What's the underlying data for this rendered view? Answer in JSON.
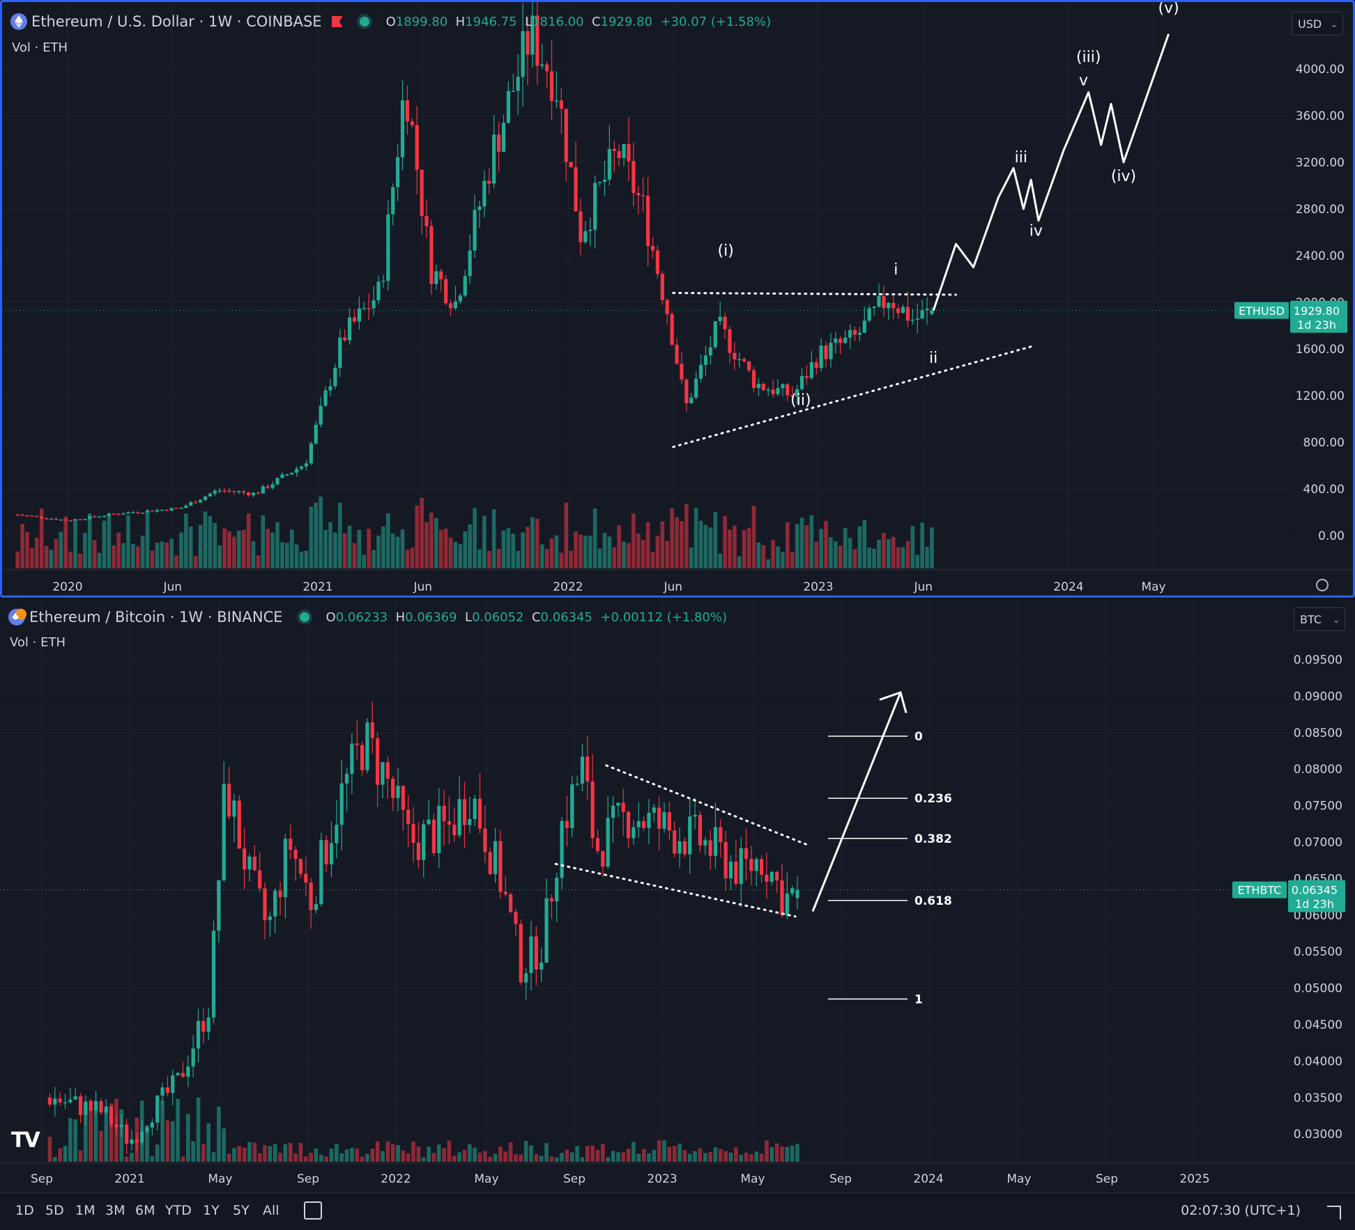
{
  "pane1": {
    "title": "Ethereum / U.S. Dollar · 1W · COINBASE",
    "ohlc": {
      "o": "1899.80",
      "h": "1946.75",
      "l": "1816.00",
      "c": "1929.80",
      "chg": "+30.07 (+1.58%)"
    },
    "vol_label": "Vol · ETH",
    "currency": "USD",
    "price_tag": {
      "symbol": "ETHUSD",
      "price": "1929.80",
      "countdown": "1d 23h"
    },
    "y_ticks": [
      "4000.00",
      "3600.00",
      "3200.00",
      "2800.00",
      "2400.00",
      "2000.00",
      "1600.00",
      "1200.00",
      "800.00",
      "400.00",
      "0.00"
    ],
    "x_ticks": [
      "2020",
      "Jun",
      "2021",
      "Jun",
      "2022",
      "Jun",
      "2023",
      "Jun",
      "2024",
      "May"
    ],
    "wave_labels": [
      "(i)",
      "(ii)",
      "i",
      "ii",
      "iii",
      "iv",
      "v",
      "(iii)",
      "(iv)",
      "(v)"
    ]
  },
  "pane2": {
    "title": "Ethereum / Bitcoin · 1W · BINANCE",
    "ohlc": {
      "o": "0.06233",
      "h": "0.06369",
      "l": "0.06052",
      "c": "0.06345",
      "chg": "+0.00112 (+1.80%)"
    },
    "vol_label": "Vol · ETH",
    "currency": "BTC",
    "price_tag": {
      "symbol": "ETHBTC",
      "price": "0.06345",
      "countdown": "1d 23h"
    },
    "y_ticks": [
      "0.09500",
      "0.09000",
      "0.08500",
      "0.08000",
      "0.07500",
      "0.07000",
      "0.06500",
      "0.06000",
      "0.05500",
      "0.05000",
      "0.04500",
      "0.04000",
      "0.03500",
      "0.03000"
    ],
    "x_ticks": [
      "Sep",
      "2021",
      "May",
      "Sep",
      "2022",
      "May",
      "Sep",
      "2023",
      "May",
      "Sep",
      "2024",
      "May",
      "Sep",
      "2025"
    ],
    "fib_labels": [
      "0",
      "0.236",
      "0.382",
      "0.618",
      "1"
    ]
  },
  "toolbar": {
    "timeframes": [
      "1D",
      "5D",
      "1M",
      "3M",
      "6M",
      "YTD",
      "1Y",
      "5Y",
      "All"
    ],
    "clock": "02:07:30 (UTC+1)"
  },
  "colors": {
    "up": "#22ab94",
    "down": "#f23645",
    "bg": "#151924",
    "grid": "#1e222d",
    "accent": "#2962ff"
  },
  "chart_data": [
    {
      "type": "candlestick",
      "title": "Ethereum / U.S. Dollar · 1W · COINBASE",
      "x_range": [
        "2019-10",
        "2024-07"
      ],
      "ylim": [
        0,
        4400
      ],
      "anchors": [
        [
          2019.8,
          180
        ],
        [
          2020.0,
          130
        ],
        [
          2020.2,
          190
        ],
        [
          2020.45,
          235
        ],
        [
          2020.6,
          390
        ],
        [
          2020.75,
          360
        ],
        [
          2020.95,
          620
        ],
        [
          2021.1,
          1700
        ],
        [
          2021.25,
          2100
        ],
        [
          2021.35,
          3900
        ],
        [
          2021.45,
          2300
        ],
        [
          2021.55,
          2000
        ],
        [
          2021.7,
          3300
        ],
        [
          2021.85,
          4300
        ],
        [
          2021.95,
          3900
        ],
        [
          2022.05,
          2600
        ],
        [
          2022.2,
          3300
        ],
        [
          2022.3,
          2800
        ],
        [
          2022.4,
          1900
        ],
        [
          2022.47,
          1100
        ],
        [
          2022.6,
          1800
        ],
        [
          2022.75,
          1300
        ],
        [
          2022.9,
          1200
        ],
        [
          2023.0,
          1550
        ],
        [
          2023.15,
          1700
        ],
        [
          2023.28,
          2050
        ],
        [
          2023.38,
          1850
        ],
        [
          2023.46,
          1929
        ]
      ],
      "last_candle": {
        "open": 1899.8,
        "high": 1946.75,
        "low": 1816.0,
        "close": 1929.8
      },
      "projection": [
        [
          2023.46,
          1929
        ],
        [
          2023.55,
          2500
        ],
        [
          2023.62,
          2300
        ],
        [
          2023.72,
          2900
        ],
        [
          2023.78,
          3150
        ],
        [
          2023.82,
          2800
        ],
        [
          2023.85,
          3050
        ],
        [
          2023.88,
          2700
        ],
        [
          2023.98,
          3300
        ],
        [
          2024.08,
          3800
        ],
        [
          2024.13,
          3350
        ],
        [
          2024.17,
          3700
        ],
        [
          2024.22,
          3200
        ],
        [
          2024.4,
          4300
        ]
      ]
    },
    {
      "type": "candlestick",
      "title": "Ethereum / Bitcoin · 1W · BINANCE",
      "x_range": [
        "2020-07",
        "2025-02"
      ],
      "ylim": [
        0.0275,
        0.0965
      ],
      "anchors": [
        [
          2020.7,
          0.035
        ],
        [
          2020.9,
          0.033
        ],
        [
          2021.0,
          0.029
        ],
        [
          2021.08,
          0.033
        ],
        [
          2021.18,
          0.037
        ],
        [
          2021.3,
          0.048
        ],
        [
          2021.36,
          0.078
        ],
        [
          2021.45,
          0.065
        ],
        [
          2021.52,
          0.058
        ],
        [
          2021.6,
          0.07
        ],
        [
          2021.68,
          0.062
        ],
        [
          2021.78,
          0.075
        ],
        [
          2021.88,
          0.084
        ],
        [
          2021.96,
          0.079
        ],
        [
          2022.05,
          0.07
        ],
        [
          2022.2,
          0.072
        ],
        [
          2022.28,
          0.077
        ],
        [
          2022.4,
          0.064
        ],
        [
          2022.47,
          0.053
        ],
        [
          2022.55,
          0.056
        ],
        [
          2022.62,
          0.072
        ],
        [
          2022.7,
          0.08
        ],
        [
          2022.75,
          0.069
        ],
        [
          2022.88,
          0.074
        ],
        [
          2023.0,
          0.072
        ],
        [
          2023.15,
          0.07
        ],
        [
          2023.3,
          0.066
        ],
        [
          2023.38,
          0.068
        ],
        [
          2023.46,
          0.062
        ],
        [
          2023.51,
          0.0634
        ]
      ],
      "last_candle": {
        "open": 0.06233,
        "high": 0.06369,
        "low": 0.06052,
        "close": 0.06345
      },
      "fibonacci": [
        {
          "level": "0",
          "price": 0.0845
        },
        {
          "level": "0.236",
          "price": 0.076
        },
        {
          "level": "0.382",
          "price": 0.0705
        },
        {
          "level": "0.618",
          "price": 0.062
        },
        {
          "level": "1",
          "price": 0.0485
        }
      ]
    }
  ]
}
